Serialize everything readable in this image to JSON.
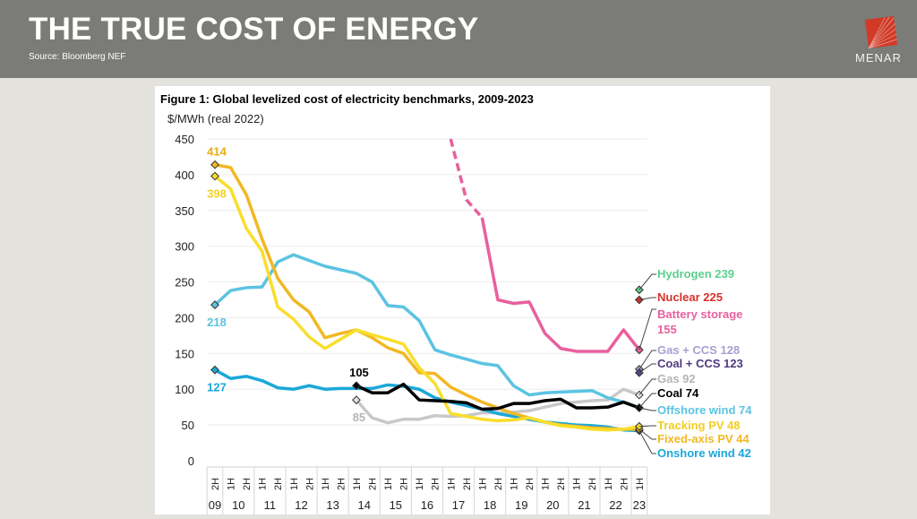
{
  "header": {
    "title": "THE TRUE COST OF ENERGY",
    "source": "Source: Bloomberg NEF",
    "logo_text": "MENAR",
    "logo_icon": "menar-logo-icon"
  },
  "chart_data": {
    "type": "line",
    "title": "Figure 1: Global levelized cost of electricity benchmarks, 2009-2023",
    "ylabel": "$/MWh (real 2022)",
    "xlabel": "",
    "ylim": [
      0,
      450
    ],
    "yticks": [
      0,
      50,
      100,
      150,
      200,
      250,
      300,
      350,
      400,
      450
    ],
    "grid": true,
    "x_halves": [
      "2H",
      "1H",
      "2H",
      "1H",
      "2H",
      "1H",
      "2H",
      "1H",
      "2H",
      "1H",
      "2H",
      "1H",
      "2H",
      "1H",
      "2H",
      "1H",
      "2H",
      "1H",
      "2H",
      "1H",
      "2H",
      "1H",
      "2H",
      "1H",
      "2H",
      "1H",
      "2H",
      "1H"
    ],
    "x_years": [
      {
        "label": "09",
        "start": 0,
        "end": 0
      },
      {
        "label": "10",
        "start": 1,
        "end": 2
      },
      {
        "label": "11",
        "start": 3,
        "end": 4
      },
      {
        "label": "12",
        "start": 5,
        "end": 6
      },
      {
        "label": "13",
        "start": 7,
        "end": 8
      },
      {
        "label": "14",
        "start": 9,
        "end": 10
      },
      {
        "label": "15",
        "start": 11,
        "end": 12
      },
      {
        "label": "16",
        "start": 13,
        "end": 14
      },
      {
        "label": "17",
        "start": 15,
        "end": 16
      },
      {
        "label": "18",
        "start": 17,
        "end": 18
      },
      {
        "label": "19",
        "start": 19,
        "end": 20
      },
      {
        "label": "20",
        "start": 21,
        "end": 22
      },
      {
        "label": "21",
        "start": 23,
        "end": 24
      },
      {
        "label": "22",
        "start": 25,
        "end": 26
      },
      {
        "label": "23",
        "start": 27,
        "end": 27
      }
    ],
    "series": [
      {
        "name": "Offshore wind",
        "color": "#5bc3e2",
        "start": 0,
        "values": [
          218,
          238,
          242,
          243,
          278,
          288,
          280,
          272,
          267,
          262,
          250,
          217,
          215,
          196,
          155,
          148,
          142,
          136,
          133,
          105,
          92,
          95,
          96,
          97,
          98,
          88,
          82,
          74
        ],
        "start_label": "218",
        "end_label": "Offshore wind  74",
        "start_marker": true
      },
      {
        "name": "Onshore wind",
        "color": "#1ba8d8",
        "start": 0,
        "values": [
          127,
          115,
          118,
          112,
          102,
          100,
          105,
          100,
          101,
          101,
          101,
          106,
          104,
          100,
          88,
          82,
          77,
          72,
          66,
          62,
          58,
          54,
          52,
          50,
          49,
          47,
          43,
          42
        ],
        "start_label": "127",
        "end_label": "Onshore wind  42",
        "start_marker": true
      },
      {
        "name": "Fixed-axis PV",
        "color": "#f2b823",
        "start": 0,
        "values": [
          414,
          410,
          372,
          310,
          255,
          225,
          208,
          172,
          178,
          183,
          172,
          158,
          150,
          123,
          122,
          103,
          92,
          82,
          74,
          66,
          60,
          54,
          50,
          48,
          46,
          45,
          44,
          44
        ],
        "start_label": "414",
        "end_label": "Fixed-axis PV  44",
        "start_marker": true
      },
      {
        "name": "Tracking PV",
        "color": "#f9de2c",
        "start": 0,
        "values": [
          398,
          380,
          325,
          293,
          215,
          198,
          173,
          157,
          170,
          183,
          176,
          170,
          163,
          130,
          108,
          66,
          62,
          58,
          56,
          57,
          60,
          54,
          49,
          47,
          44,
          43,
          44,
          48
        ],
        "start_label": "398",
        "end_label": "Tracking PV  48",
        "start_marker": true
      },
      {
        "name": "Coal",
        "color": "#000000",
        "start": 9,
        "values": [
          105,
          95,
          95,
          107,
          85,
          84,
          83,
          81,
          72,
          73,
          80,
          80,
          84,
          86,
          74,
          74,
          75,
          82,
          74
        ],
        "start_label": "105",
        "end_label": "Coal  74",
        "start_marker": true
      },
      {
        "name": "Gas",
        "color": "#c8c8c8",
        "start": 9,
        "values": [
          85,
          60,
          53,
          58,
          58,
          63,
          62,
          63,
          67,
          67,
          68,
          70,
          75,
          80,
          82,
          84,
          85,
          100,
          92
        ],
        "start_label": "85",
        "end_label": "Gas  92",
        "start_marker": true
      },
      {
        "name": "Battery storage",
        "color": "#e8609e",
        "start": 15,
        "dashed_until": 17,
        "values": [
          450,
          365,
          340,
          225,
          220,
          222,
          178,
          157,
          153,
          153,
          153,
          183,
          155
        ],
        "end_label": "Battery storage 155"
      }
    ],
    "point_markers": [
      {
        "name": "Hydrogen",
        "value": 239,
        "color": "#5ccf8e",
        "label": "Hydrogen  239"
      },
      {
        "name": "Nuclear",
        "value": 225,
        "color": "#d9302a",
        "label": "Nuclear  225"
      },
      {
        "name": "Gas + CCS",
        "value": 128,
        "color": "#ab9ed3",
        "label": "Gas + CCS  128"
      },
      {
        "name": "Coal + CCS",
        "value": 123,
        "color": "#5a4591",
        "label": "Coal + CCS  123"
      }
    ],
    "end_labels": [
      {
        "text": "Hydrogen  239",
        "color": "#5ccf8e"
      },
      {
        "text": "Nuclear  225",
        "color": "#d9302a"
      },
      {
        "text": "Battery storage",
        "color": "#e8609e"
      },
      {
        "text": "155",
        "color": "#e8609e"
      },
      {
        "text": "Gas + CCS  128",
        "color": "#ab9ed3"
      },
      {
        "text": "Coal + CCS  123",
        "color": "#4b3a80"
      },
      {
        "text": "Gas  92",
        "color": "#b5b5b5"
      },
      {
        "text": "Coal  74",
        "color": "#000000"
      },
      {
        "text": "Offshore wind  74",
        "color": "#5bc3e2"
      },
      {
        "text": "Tracking PV  48",
        "color": "#f2cf1f"
      },
      {
        "text": "Fixed-axis PV  44",
        "color": "#f2b823"
      },
      {
        "text": "Onshore wind  42",
        "color": "#1ba8d8"
      }
    ]
  }
}
